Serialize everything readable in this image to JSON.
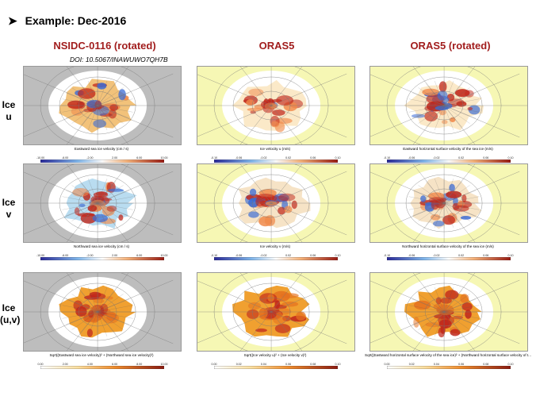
{
  "heading": {
    "bullet": "➤",
    "text": "Example: Dec-2016"
  },
  "columns": [
    {
      "title": "NSIDC-0116 (rotated)",
      "subtitle": "DOI: 10.5067/INAWUWO7QH7B"
    },
    {
      "title": "ORAS5"
    },
    {
      "title": "ORAS5 (rotated)"
    }
  ],
  "rows": [
    {
      "label_line1": "Ice",
      "label_line2": "u"
    },
    {
      "label_line1": "Ice",
      "label_line2": "v"
    },
    {
      "label_line1": "Ice",
      "label_line2": "(u,v)"
    }
  ],
  "colorbar_labels": [
    [
      "Eastward sea ice velocity (cm / s)",
      "Ice velocity u (m/s)",
      "Eastward horizontal surface velocity of the sea ice (m/s)"
    ],
    [
      "Northward sea ice velocity (cm / s)",
      "Ice velocity v (m/s)",
      "Northward horizontal surface velocity of the sea ice (m/s)"
    ],
    [
      "Sqrt((Eastward sea ice velocity)² + (Northward sea ice velocity)²)",
      "Sqrt((Ice velocity u)² + (Ice velocity v)²)",
      "Sqrt((Eastward horizontal surface velocity of the sea ice)² + (Northward horizontal surface velocity of t..."
    ]
  ],
  "colorbar_ticks": {
    "nsidc_diverging": [
      "-10.00",
      "-6.00",
      "-2.00",
      "2.00",
      "6.00",
      "10.00"
    ],
    "oras5_diverging": [
      "-0.10",
      "-0.06",
      "-0.02",
      "0.02",
      "0.06",
      "0.10"
    ],
    "nsidc_magnitude": [
      "0.00",
      "2.00",
      "4.00",
      "6.00",
      "8.00",
      "10.00"
    ],
    "oras5_magnitude": [
      "0.00",
      "0.02",
      "0.04",
      "0.06",
      "0.08",
      "0.10"
    ]
  },
  "colors": {
    "title_red": "#a11d1d",
    "land_grey": "#bdbdbd",
    "land_yellow": "#f6f7b4",
    "ice_blue": "#3a6bd6",
    "ice_red": "#c1281c",
    "ice_orange": "#f0a030"
  }
}
